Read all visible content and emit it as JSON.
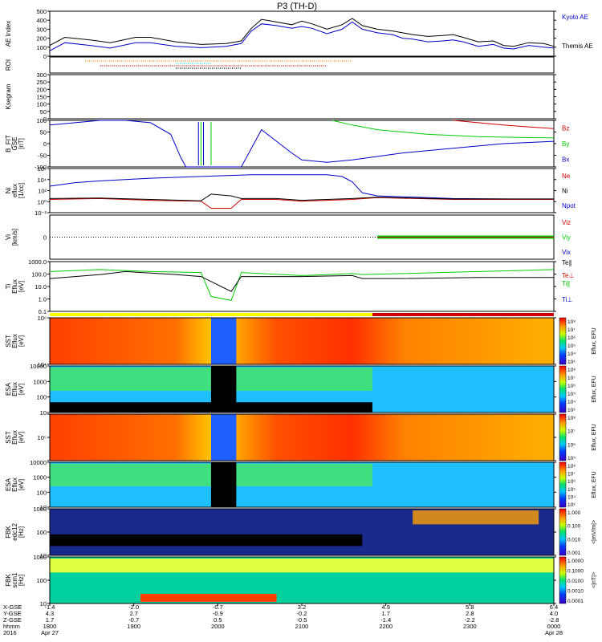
{
  "title": "P3 (TH-D)",
  "colors": {
    "black": "#000000",
    "blue": "#0000c8",
    "red": "#d00000",
    "green": "#00cc00",
    "orange": "#ff7f00",
    "cyan": "#00e0ff",
    "yellow": "#ffff00"
  },
  "chart_data": [
    {
      "type": "line",
      "panel": "ae",
      "ylabel": "AE Index",
      "ylim": [
        0,
        500
      ],
      "yticks": [
        "0",
        "100",
        "200",
        "300",
        "400",
        "500"
      ],
      "legend": [
        "Kyoto AE",
        "Themis AE"
      ],
      "series": [
        {
          "name": "Kyoto AE",
          "color": "blue",
          "x": [
            0,
            0.03,
            0.08,
            0.12,
            0.17,
            0.2,
            0.25,
            0.3,
            0.35,
            0.38,
            0.4,
            0.42,
            0.45,
            0.48,
            0.5,
            0.52,
            0.55,
            0.58,
            0.6,
            0.62,
            0.65,
            0.68,
            0.7,
            0.72,
            0.75,
            0.78,
            0.8,
            0.82,
            0.85,
            0.88,
            0.9,
            0.92,
            0.95,
            0.98,
            1
          ],
          "y": [
            60,
            150,
            120,
            90,
            150,
            150,
            110,
            95,
            110,
            140,
            280,
            360,
            340,
            310,
            330,
            310,
            250,
            300,
            380,
            300,
            260,
            240,
            200,
            190,
            160,
            170,
            180,
            160,
            110,
            130,
            90,
            80,
            120,
            100,
            90
          ]
        },
        {
          "name": "Themis AE",
          "color": "black",
          "x": [
            0,
            0.03,
            0.08,
            0.12,
            0.17,
            0.2,
            0.25,
            0.3,
            0.35,
            0.38,
            0.4,
            0.42,
            0.45,
            0.48,
            0.5,
            0.52,
            0.55,
            0.58,
            0.6,
            0.62,
            0.65,
            0.68,
            0.7,
            0.72,
            0.75,
            0.78,
            0.8,
            0.82,
            0.85,
            0.88,
            0.9,
            0.92,
            0.95,
            0.98,
            1
          ],
          "y": [
            120,
            210,
            180,
            150,
            210,
            210,
            160,
            130,
            140,
            170,
            310,
            410,
            380,
            350,
            390,
            360,
            300,
            350,
            420,
            340,
            300,
            280,
            260,
            240,
            220,
            230,
            240,
            210,
            160,
            170,
            120,
            110,
            150,
            140,
            110
          ]
        }
      ]
    },
    {
      "type": "scatter",
      "panel": "roi",
      "ylabel": "ROI",
      "note_rows": [
        "orange",
        "cyan",
        "red",
        "black"
      ]
    },
    {
      "type": "line",
      "panel": "kgm",
      "ylabel": "Ksegram",
      "ylim": [
        0,
        300
      ],
      "yticks": [
        "0",
        "50",
        "100",
        "150",
        "200",
        "250",
        "300"
      ]
    },
    {
      "type": "line",
      "panel": "bfield",
      "ylabel": "B_FIT\nGSE\n[nT]",
      "ylim": [
        -100,
        100
      ],
      "yticks": [
        "-100",
        "-50",
        "0",
        "50",
        "100"
      ],
      "legend": [
        "Bz",
        "By",
        "Bx"
      ],
      "series": [
        {
          "name": "Bx",
          "color": "blue",
          "x": [
            0,
            0.05,
            0.1,
            0.15,
            0.2,
            0.24,
            0.26,
            0.27,
            0.28,
            0.3,
            0.32,
            0.38,
            0.42,
            0.45,
            0.48,
            0.5,
            0.55,
            0.6,
            0.7,
            0.8,
            0.9,
            1
          ],
          "y": [
            80,
            90,
            100,
            100,
            90,
            40,
            -60,
            -100,
            -100,
            -100,
            -100,
            -100,
            60,
            10,
            -40,
            -70,
            -80,
            -70,
            -40,
            -20,
            0,
            10
          ]
        },
        {
          "name": "By",
          "color": "green",
          "x": [
            0.56,
            0.6,
            0.65,
            0.7,
            0.75,
            0.8,
            0.85,
            0.9,
            0.95,
            1
          ],
          "y": [
            100,
            80,
            60,
            50,
            40,
            35,
            30,
            28,
            26,
            25
          ]
        },
        {
          "name": "Bz",
          "color": "red",
          "x": [
            0.8,
            0.85,
            0.9,
            0.95,
            1
          ],
          "y": [
            100,
            90,
            80,
            72,
            65
          ]
        }
      ]
    },
    {
      "type": "line",
      "panel": "density",
      "ylabel": "Ni\neflux\n[1/cc]",
      "yticks": [
        "10⁻²",
        "10⁰",
        "10²",
        "10⁴",
        "10⁶"
      ],
      "legend": [
        "Ne",
        "Ni",
        "Npot"
      ]
    },
    {
      "type": "line",
      "panel": "velocity",
      "ylabel": "Vi\n[km/s]",
      "legend": [
        "Viz",
        "Viy",
        "Vix"
      ]
    },
    {
      "type": "line",
      "panel": "temperature",
      "ylabel": "Ti\nEflux\n[eV]",
      "yticks": [
        "0.1",
        "1.0",
        "10.0",
        "100.0",
        "1000.0"
      ],
      "legend": [
        "Te⊥",
        "Ti∥",
        "Ti⊥",
        "Te∥"
      ]
    },
    {
      "type": "heatmap",
      "panels": [
        {
          "id": "sst1",
          "ylabel": "SST\nEflux\n[eV]",
          "yticks": [
            "10⁴",
            "10⁶"
          ],
          "cbar": "Eflux, EFU",
          "cticks": [
            "10⁸",
            "10⁷",
            "10⁶",
            "10⁵",
            "10⁴",
            "10³"
          ]
        },
        {
          "id": "esa1",
          "ylabel": "ESA\nEflux\n[eV]",
          "yticks": [
            "10",
            "100",
            "1000",
            "10000"
          ],
          "cbar": "Eflux, EFU",
          "cticks": [
            "10⁸",
            "10⁷",
            "10⁶",
            "10⁵",
            "10⁴",
            "10³"
          ]
        },
        {
          "id": "sst2",
          "ylabel": "SST\nEflux\n[eV]",
          "yticks": [
            "10⁵"
          ],
          "cbar": "Eflux, EFU",
          "cticks": [
            "10⁸",
            "10⁷",
            "10⁶",
            "10⁵"
          ]
        },
        {
          "id": "esa2",
          "ylabel": "ESA\nEflux\n[eV]",
          "yticks": [
            "10",
            "100",
            "1000",
            "10000"
          ],
          "cbar": "Eflux, EFU",
          "cticks": [
            "10⁸",
            "10⁷",
            "10⁶",
            "10⁵",
            "10⁴",
            "10³"
          ]
        },
        {
          "id": "fbk1",
          "ylabel": "FBK\nedc12\n[Hz]",
          "yticks": [
            "10",
            "100",
            "1000"
          ],
          "cbar": "<|mV/m|>",
          "cticks": [
            "1.000",
            "0.100",
            "0.010",
            "0.001"
          ]
        },
        {
          "id": "fbk2",
          "ylabel": "FBK\nscm1\n[Hz]",
          "yticks": [
            "10",
            "100",
            "1000"
          ],
          "cbar": "<|nT|>",
          "cticks": [
            "1.0000",
            "0.1000",
            "0.0100",
            "0.0010",
            "0.0001"
          ]
        }
      ]
    },
    {
      "type": "table",
      "panel": "xaxis",
      "row_labels": [
        "X-GSE",
        "Y-GSE",
        "Z-GSE",
        "hhmm",
        "2016"
      ],
      "columns": [
        [
          "-1.4",
          "4.3",
          "1.7",
          "1800",
          "Apr 27"
        ],
        [
          "-2.0",
          "2.7",
          "-0.7",
          "1900",
          ""
        ],
        [
          "-0.7",
          "-0.9",
          "0.5",
          "2000",
          ""
        ],
        [
          "3.2",
          "-0.2",
          "-0.5",
          "2100",
          ""
        ],
        [
          "4.9",
          "1.7",
          "-1.4",
          "2200",
          ""
        ],
        [
          "5.8",
          "2.8",
          "-2.2",
          "2300",
          ""
        ],
        [
          "6.4",
          "4.0",
          "-2.8",
          "0000",
          "Apr 28"
        ]
      ]
    }
  ]
}
